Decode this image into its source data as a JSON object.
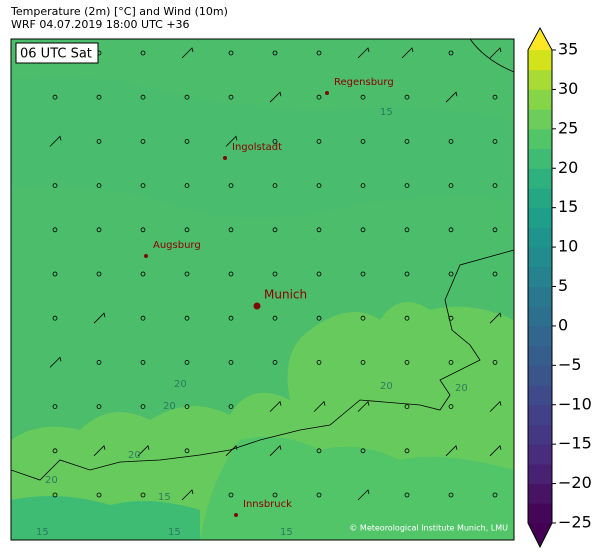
{
  "header": {
    "title": "Temperature (2m) [°C] and Wind (10m)",
    "subtitle": "WRF 04.07.2019 18:00 UTC +36"
  },
  "map": {
    "time_label": "06 UTC Sat",
    "cities": [
      {
        "name": "Regensburg"
      },
      {
        "name": "Ingolstadt"
      },
      {
        "name": "Augsburg"
      },
      {
        "name": "Munich"
      },
      {
        "name": "Innsbruck"
      }
    ],
    "contour_labels": [
      "15",
      "20",
      "20",
      "20",
      "20",
      "20",
      "20",
      "15",
      "15",
      "15",
      "15"
    ],
    "credit": "© Meteorological Institute Munich, LMU"
  },
  "colorbar": {
    "vmin": -25,
    "vmax": 35,
    "colors": [
      "#450559",
      "#471365",
      "#482173",
      "#472d7b",
      "#453882",
      "#424086",
      "#3e4a89",
      "#3a548c",
      "#355e8d",
      "#31678e",
      "#2d708e",
      "#2a788e",
      "#26828e",
      "#228b8d",
      "#1f948c",
      "#1f9e89",
      "#25a784",
      "#2fb07f",
      "#3fbc73",
      "#52c569",
      "#6ccd5a",
      "#86d549",
      "#a8db34",
      "#d2e21b"
    ],
    "under_color": "#440154",
    "over_color": "#fde725",
    "ticks": [
      {
        "value": -25,
        "label": "−25"
      },
      {
        "value": -20,
        "label": "−20"
      },
      {
        "value": -15,
        "label": "−15"
      },
      {
        "value": -10,
        "label": "−10"
      },
      {
        "value": -5,
        "label": "−5"
      },
      0,
      5,
      10,
      15,
      20,
      25,
      30,
      35
    ]
  }
}
